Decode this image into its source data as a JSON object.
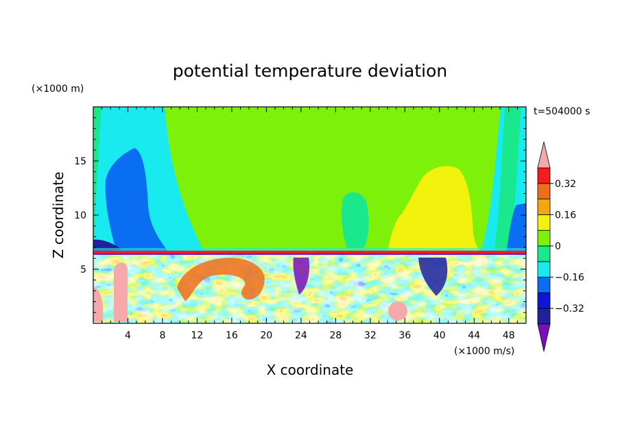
{
  "chart_data": {
    "type": "heatmap",
    "title": "potential temperature deviation",
    "xlabel": "X coordinate",
    "ylabel": "Z coordinate",
    "x_unit": "(×1000 m/s)",
    "y_unit": "(×1000 m)",
    "time_label": "t=504000 s",
    "xlim": [
      0,
      50
    ],
    "ylim": [
      0,
      20
    ],
    "x_ticks": [
      "4",
      "8",
      "12",
      "16",
      "20",
      "24",
      "28",
      "32",
      "36",
      "40",
      "44",
      "48"
    ],
    "y_ticks": [
      "5",
      "10",
      "15"
    ],
    "colorbar": {
      "levels": [
        -0.4,
        -0.32,
        -0.24,
        -0.16,
        -0.08,
        0,
        0.08,
        0.16,
        0.24,
        0.32,
        0.4
      ],
      "tick_labels": [
        "0.32",
        "0.16",
        "0",
        "−0.16",
        "−0.32"
      ],
      "colors": [
        "#7b10b8",
        "#21219c",
        "#0b16d8",
        "#0a6ef2",
        "#19eaf0",
        "#19e88c",
        "#7ef10b",
        "#f2f20c",
        "#f4a610",
        "#f06d1d",
        "#f31d1d",
        "#f6a9aa"
      ]
    }
  }
}
